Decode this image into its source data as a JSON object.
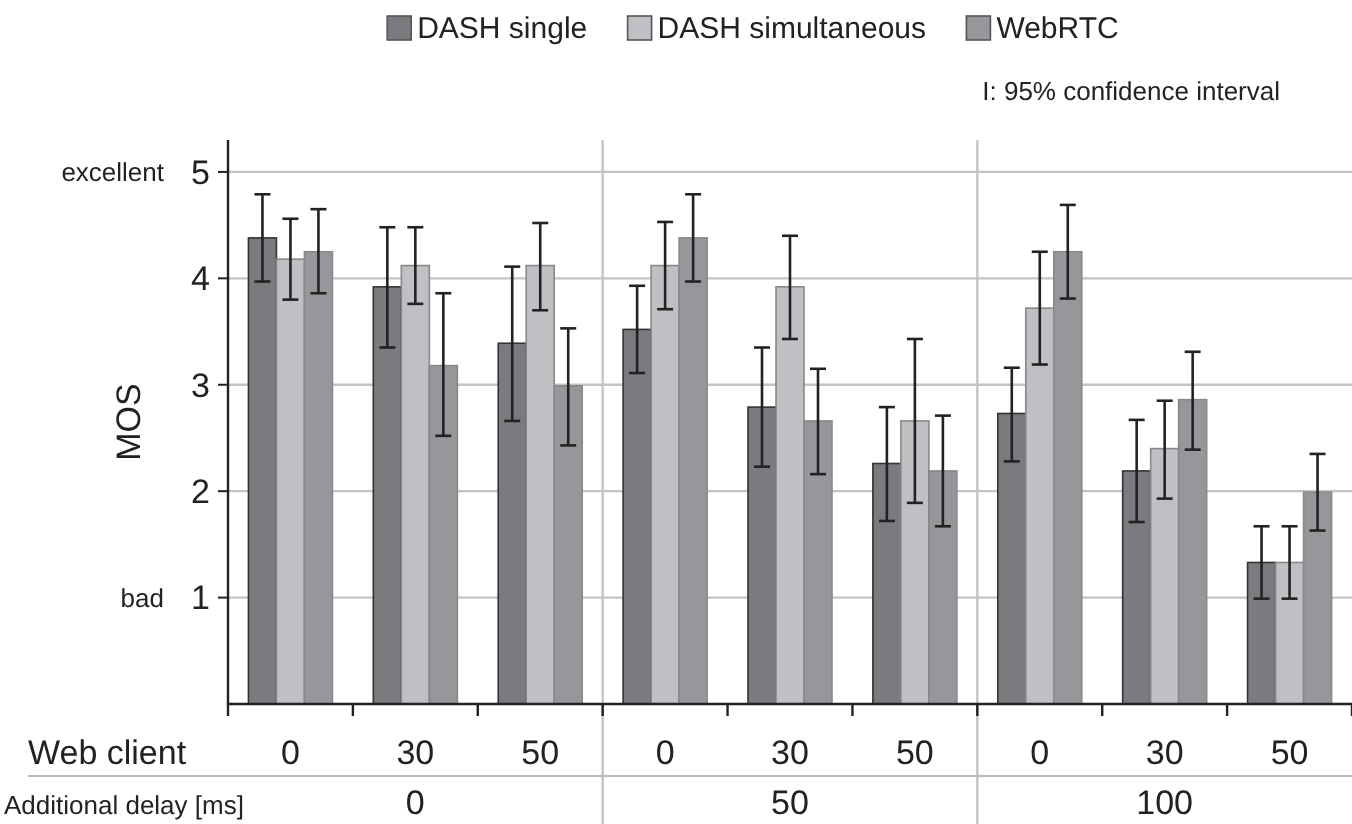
{
  "chart_data": {
    "type": "bar",
    "ylabel": "MOS",
    "xlabel": "Web client",
    "categories": [
      "0",
      "30",
      "50",
      "0",
      "30",
      "50",
      "0",
      "30",
      "50"
    ],
    "series": [
      {
        "name": "DASH single",
        "color": "#7a7b7f",
        "values": [
          4.38,
          3.92,
          3.39,
          3.52,
          2.79,
          2.26,
          2.73,
          2.19,
          1.33
        ],
        "errors": [
          [
            3.97,
            4.79
          ],
          [
            3.35,
            4.48
          ],
          [
            2.66,
            4.11
          ],
          [
            3.11,
            3.93
          ],
          [
            2.23,
            3.35
          ],
          [
            1.72,
            2.79
          ],
          [
            2.28,
            3.16
          ],
          [
            1.71,
            2.67
          ],
          [
            0.99,
            1.67
          ]
        ]
      },
      {
        "name": "DASH simultaneous",
        "color": "#bfc0c4",
        "values": [
          4.18,
          4.12,
          4.12,
          4.12,
          3.92,
          2.66,
          3.72,
          2.4,
          1.33
        ],
        "errors": [
          [
            3.8,
            4.56
          ],
          [
            3.76,
            4.48
          ],
          [
            3.7,
            4.52
          ],
          [
            3.71,
            4.53
          ],
          [
            3.43,
            4.4
          ],
          [
            1.89,
            3.43
          ],
          [
            3.19,
            4.25
          ],
          [
            1.93,
            2.85
          ],
          [
            0.99,
            1.67
          ]
        ]
      },
      {
        "name": "WebRTC",
        "color": "#96979b",
        "values": [
          4.25,
          3.18,
          2.99,
          4.38,
          2.66,
          2.19,
          4.25,
          2.86,
          1.99
        ],
        "errors": [
          [
            3.86,
            4.65
          ],
          [
            2.52,
            3.86
          ],
          [
            2.43,
            3.53
          ],
          [
            3.97,
            4.79
          ],
          [
            2.16,
            3.15
          ],
          [
            1.67,
            2.71
          ],
          [
            3.81,
            4.69
          ],
          [
            2.39,
            3.31
          ],
          [
            1.63,
            2.35
          ]
        ]
      }
    ],
    "ylim": [
      0,
      5.3
    ],
    "yticks": [
      1,
      2,
      3,
      4,
      5
    ],
    "grid": "y",
    "legend": "top",
    "annotations": [
      "I: 95% confidence interval",
      "excellent",
      "bad",
      "Additional delay [ms]",
      "0",
      "50",
      "100"
    ]
  }
}
